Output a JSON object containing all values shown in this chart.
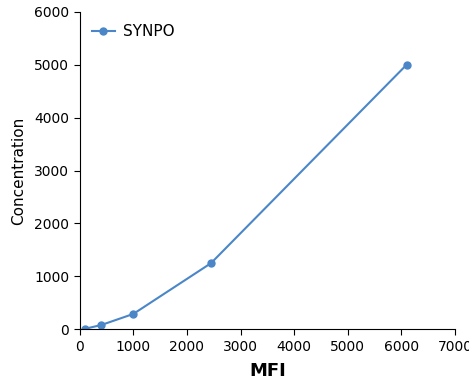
{
  "x": [
    100,
    400,
    1000,
    2450,
    6100
  ],
  "y": [
    10,
    80,
    290,
    1250,
    5000
  ],
  "line_color": "#4a86c8",
  "marker": "o",
  "marker_size": 5,
  "legend_label": "SYNPO",
  "xlabel": "MFI",
  "ylabel": "Concentration",
  "xlim": [
    0,
    7000
  ],
  "ylim": [
    0,
    6000
  ],
  "xticks": [
    0,
    1000,
    2000,
    3000,
    4000,
    5000,
    6000,
    7000
  ],
  "yticks": [
    0,
    1000,
    2000,
    3000,
    4000,
    5000,
    6000
  ],
  "xlabel_fontsize": 13,
  "ylabel_fontsize": 11,
  "tick_fontsize": 10,
  "legend_fontsize": 11,
  "background_color": "#ffffff",
  "grid": false
}
